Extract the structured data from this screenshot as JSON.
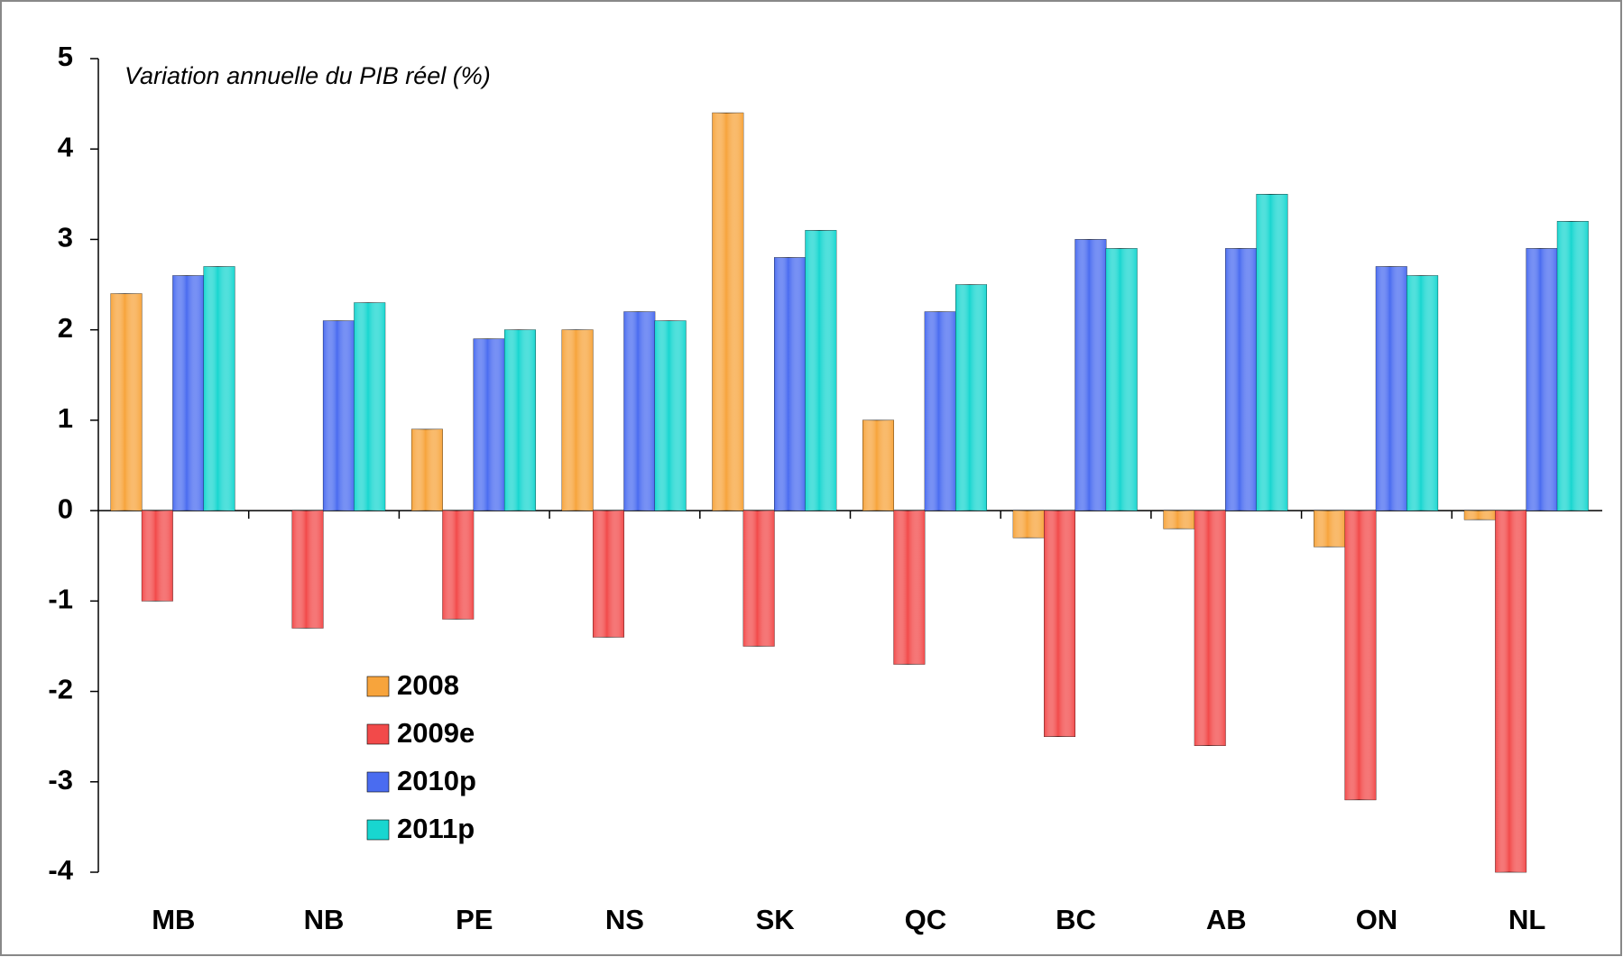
{
  "chart_data": {
    "type": "bar",
    "subtitle": "Variation annuelle du PIB réel (%)",
    "categories": [
      "MB",
      "NB",
      "PE",
      "NS",
      "SK",
      "QC",
      "BC",
      "AB",
      "ON",
      "NL"
    ],
    "series": [
      {
        "name": "2008",
        "color": "#f7a43c",
        "values": [
          2.4,
          0,
          0.9,
          2.0,
          4.4,
          1.0,
          -0.3,
          -0.2,
          -0.4,
          -0.1
        ]
      },
      {
        "name": "2009e",
        "color": "#f24a4a",
        "values": [
          -1.0,
          -1.3,
          -1.2,
          -1.4,
          -1.5,
          -1.7,
          -2.5,
          -2.6,
          -3.2,
          -4.0
        ]
      },
      {
        "name": "2010p",
        "color": "#4a6cf0",
        "values": [
          2.6,
          2.1,
          1.9,
          2.2,
          2.8,
          2.2,
          3.0,
          2.9,
          2.7,
          2.9
        ]
      },
      {
        "name": "2011p",
        "color": "#18d6d0",
        "values": [
          2.7,
          2.3,
          2.0,
          2.1,
          3.1,
          2.5,
          2.9,
          3.5,
          2.6,
          3.2
        ]
      }
    ],
    "ylim": [
      -4,
      5
    ],
    "yticks": [
      -4,
      -3,
      -2,
      -1,
      0,
      1,
      2,
      3,
      4,
      5
    ],
    "grid": false
  }
}
